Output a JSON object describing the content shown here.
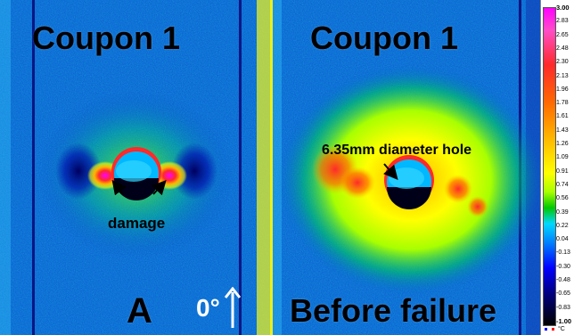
{
  "left_panel": {
    "title": "Coupon 1",
    "letter": "A",
    "orientation": "0°",
    "annotation": "damage"
  },
  "right_panel": {
    "title": "Coupon 1",
    "caption": "Before failure",
    "annotation": "6.35mm diameter hole"
  },
  "colorbar": {
    "ticks": [
      "3.00",
      "2.83",
      "2.65",
      "2.48",
      "2.30",
      "2.13",
      "1.96",
      "1.78",
      "1.61",
      "1.43",
      "1.26",
      "1.09",
      "0.91",
      "0.74",
      "0.56",
      "0.39",
      "0.22",
      "0.04",
      "-0.13",
      "-0.30",
      "-0.48",
      "-0.65",
      "-0.83",
      "-1.00"
    ],
    "unit": "°C",
    "colors": [
      "#ff00ff",
      "#ff2a2a",
      "#ffb000",
      "#ffff00",
      "#00c800",
      "#00d8ff",
      "#0000ff",
      "#000000"
    ]
  }
}
